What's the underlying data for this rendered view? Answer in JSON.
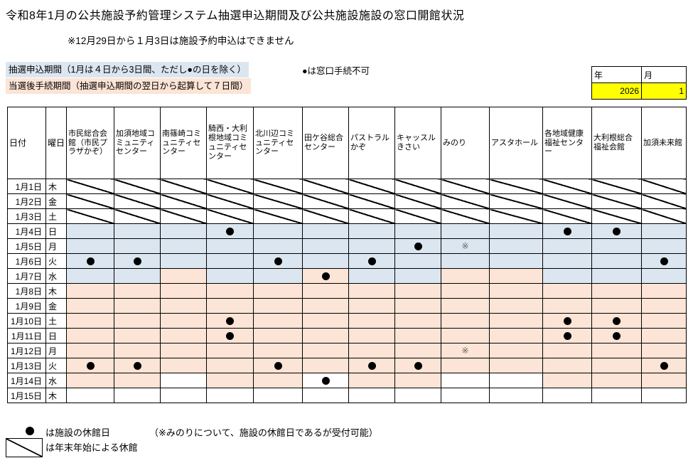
{
  "title": "令和8年1月の公共施設予約管理システム抽選申込期間及び公共施設施設の窓口開館状況",
  "subtitle": "※12月29日から１月3日は施設予約申込はできません",
  "legend": {
    "lottery_period": "抽選申込期間（1月は４日から3日間、ただし●の日を除く）",
    "procedure_period": "当選後手続期間（抽選申込期間の翌日から起算して７日間）",
    "counter_note": "●は窓口手続不可"
  },
  "period_selector": {
    "year_label": "年",
    "month_label": "月",
    "year_value": "2026",
    "month_value": "1"
  },
  "colors": {
    "lottery_bg": "#dce6f1",
    "procedure_bg": "#fce4d6",
    "input_bg": "#ffff00"
  },
  "marks": {
    "closed_day_symbol": "●",
    "closed_but_accepting_symbol": "※"
  },
  "table": {
    "date_header": "日付",
    "day_header": "曜日",
    "facilities": [
      "市民総合会館（市民プラザかぞ）",
      "加須地域コミュニティセンター",
      "南篠崎コミュニティセンター",
      "騎西・大利根地域コミュニティセンター",
      "北川辺コミュニティセンター",
      "田ケ谷総合センター",
      "パストラルかぞ",
      "キャッスルきさい",
      "みのり",
      "アスタホール",
      "各地域健康福祉センター",
      "大利根総合福祉会館",
      "加須未来館"
    ],
    "cell_code_legend": {
      "x": "new-year-closure-diagonal",
      "b": "lottery-application-period",
      "p": "post-win-procedure-period",
      "w": "open-no-period",
      "*": "facility-closed-dot",
      "#": "closed-but-accepting-kome"
    },
    "rows": [
      {
        "date": "1月1日",
        "day": "木",
        "cells": [
          "x",
          "x",
          "x",
          "x",
          "x",
          "x",
          "x",
          "x",
          "x",
          "x",
          "x",
          "x",
          "x"
        ]
      },
      {
        "date": "1月2日",
        "day": "金",
        "cells": [
          "x",
          "x",
          "x",
          "x",
          "x",
          "x",
          "x",
          "x",
          "x",
          "x",
          "x",
          "x",
          "x"
        ]
      },
      {
        "date": "1月3日",
        "day": "土",
        "cells": [
          "x",
          "x",
          "x",
          "x",
          "x",
          "x",
          "x",
          "x",
          "x",
          "x",
          "x",
          "x",
          "x"
        ]
      },
      {
        "date": "1月4日",
        "day": "日",
        "cells": [
          "b",
          "b",
          "b",
          "b*",
          "b",
          "b",
          "b",
          "b",
          "b",
          "b",
          "b*",
          "b*",
          "b"
        ]
      },
      {
        "date": "1月5日",
        "day": "月",
        "cells": [
          "b",
          "b",
          "b",
          "b",
          "b",
          "b",
          "b",
          "b*",
          "b#",
          "b",
          "b",
          "b",
          "b"
        ]
      },
      {
        "date": "1月6日",
        "day": "火",
        "cells": [
          "b*",
          "b*",
          "b",
          "b",
          "b*",
          "b",
          "b*",
          "b",
          "b",
          "b",
          "b",
          "b",
          "b*"
        ]
      },
      {
        "date": "1月7日",
        "day": "水",
        "cells": [
          "b",
          "b",
          "p",
          "b",
          "b",
          "p*",
          "b",
          "b",
          "p",
          "p",
          "b",
          "b",
          "b"
        ]
      },
      {
        "date": "1月8日",
        "day": "木",
        "cells": [
          "p",
          "p",
          "p",
          "p",
          "p",
          "p",
          "p",
          "p",
          "p",
          "p",
          "p",
          "p",
          "p"
        ]
      },
      {
        "date": "1月9日",
        "day": "金",
        "cells": [
          "p",
          "p",
          "p",
          "p",
          "p",
          "p",
          "p",
          "p",
          "p",
          "p",
          "p",
          "p",
          "p"
        ]
      },
      {
        "date": "1月10日",
        "day": "土",
        "cells": [
          "p",
          "p",
          "p",
          "p*",
          "p",
          "p",
          "p",
          "p",
          "p",
          "p",
          "p*",
          "p*",
          "p"
        ]
      },
      {
        "date": "1月11日",
        "day": "日",
        "cells": [
          "p",
          "p",
          "p",
          "p*",
          "p",
          "p",
          "p",
          "p",
          "p",
          "p",
          "p*",
          "p*",
          "p"
        ]
      },
      {
        "date": "1月12日",
        "day": "月",
        "cells": [
          "p",
          "p",
          "p",
          "p",
          "p",
          "p",
          "p",
          "p",
          "p#",
          "p",
          "p",
          "p",
          "p"
        ]
      },
      {
        "date": "1月13日",
        "day": "火",
        "cells": [
          "p*",
          "p*",
          "p",
          "p",
          "p*",
          "p",
          "p*",
          "p*",
          "p",
          "p",
          "p",
          "p",
          "p*"
        ]
      },
      {
        "date": "1月14日",
        "day": "水",
        "cells": [
          "p",
          "p",
          "w",
          "p",
          "p",
          "w*",
          "p",
          "p",
          "w",
          "w",
          "p",
          "p",
          "p"
        ]
      },
      {
        "date": "1月15日",
        "day": "木",
        "cells": [
          "w",
          "w",
          "w",
          "w",
          "w",
          "w",
          "w",
          "w",
          "w",
          "w",
          "w",
          "w",
          "w"
        ]
      }
    ]
  },
  "footer": {
    "dot_label": "は施設の休館日",
    "dot_note": "（※みのりについて、施設の休館日であるが受付可能）",
    "diagonal_label": "は年末年始による休館"
  }
}
